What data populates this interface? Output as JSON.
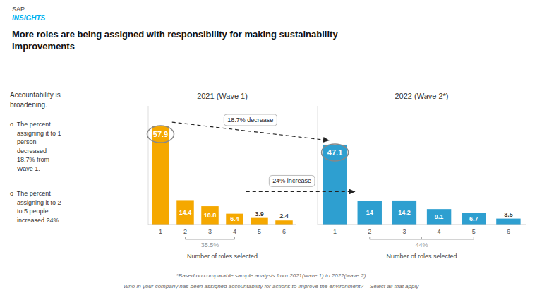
{
  "brand": "SAP",
  "brand_tagline": "INSIGHTS",
  "brand_color": "#00AEEF",
  "title": "More roles are being assigned with responsibility for making sustainability\nimprovements",
  "notes": [
    "Accountability is\nbroadening.",
    "o  The percent\n    assigning it to 1\n    person\n    decreased\n    18.7% from\n    Wave 1.",
    "o  The percent\n    assigning it to 2\n    to 5 people\n    increased 24%."
  ],
  "footnotes": [
    "*Based on comparable sample analysis from 2021(wave 1) to 2022(wave 2)",
    "Who in your company has been assigned accountability for actions to improve the environment? – Select all that apply"
  ],
  "annotations": [
    {
      "text": "18.7% decrease"
    },
    {
      "text": "24% increase"
    }
  ],
  "chart_data": [
    {
      "type": "bar",
      "title": "2021 (Wave 1)",
      "xlabel": "Number of roles selected",
      "categories": [
        1,
        2,
        3,
        4,
        5,
        6
      ],
      "values": [
        57.9,
        14.4,
        10.8,
        6.4,
        3.9,
        2.4
      ],
      "color": "#F5A800",
      "ylim": [
        0,
        70
      ],
      "tick_labels": "x",
      "data_labels": true,
      "annotations": [
        {
          "text": "35.5%",
          "categories": [
            2,
            3,
            4
          ]
        }
      ]
    },
    {
      "type": "bar",
      "title": "2022 (Wave 2*)",
      "xlabel": "Number of roles selected",
      "categories": [
        1,
        2,
        3,
        4,
        5,
        6
      ],
      "values": [
        47.1,
        14,
        14.2,
        9.1,
        6.7,
        3.5
      ],
      "color": "#2E9FD0",
      "ylim": [
        0,
        70
      ],
      "tick_labels": "x",
      "data_labels": true,
      "annotations": [
        {
          "text": "44%",
          "categories": [
            2,
            3,
            4,
            5
          ]
        }
      ]
    }
  ]
}
